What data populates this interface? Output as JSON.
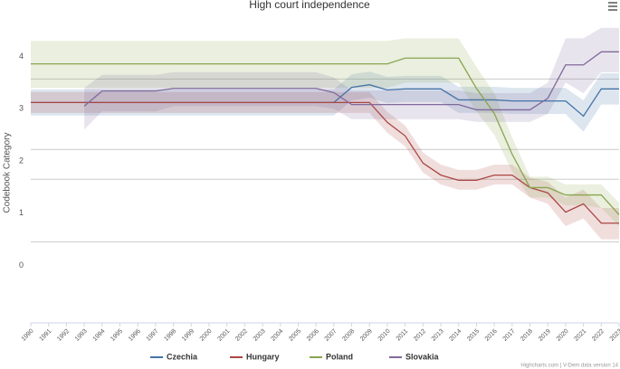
{
  "chart_data": {
    "type": "line",
    "title": "High court independence",
    "y_label": "Codebook Category",
    "credits": "Highcharts.com | V-Dem data version 14",
    "x": [
      1990,
      1991,
      1992,
      1993,
      1994,
      1995,
      1996,
      1997,
      1998,
      1999,
      2000,
      2001,
      2002,
      2003,
      2004,
      2005,
      2006,
      2007,
      2008,
      2009,
      2010,
      2011,
      2012,
      2013,
      2014,
      2015,
      2016,
      2017,
      2018,
      2019,
      2020,
      2021,
      2022,
      2023
    ],
    "xlim": [
      1990,
      2023
    ],
    "xticks": [
      1990,
      1991,
      1992,
      1993,
      1994,
      1995,
      1996,
      1997,
      1998,
      1999,
      2000,
      2001,
      2002,
      2003,
      2004,
      2005,
      2006,
      2007,
      2008,
      2009,
      2010,
      2011,
      2012,
      2013,
      2014,
      2015,
      2016,
      2017,
      2018,
      2019,
      2020,
      2021,
      2022,
      2023
    ],
    "ylim": [
      -1.1,
      4.65
    ],
    "yticks": [
      0,
      1,
      2,
      3,
      4
    ],
    "plot_lines": [
      3.57,
      2.22,
      1.65,
      0.45
    ],
    "legend": "bottom",
    "series": [
      {
        "name": "Czechia",
        "color": "#4572a7",
        "values": [
          3.12,
          3.12,
          3.12,
          3.12,
          3.12,
          3.12,
          3.12,
          3.12,
          3.12,
          3.12,
          3.12,
          3.12,
          3.12,
          3.12,
          3.12,
          3.12,
          3.12,
          3.12,
          3.41,
          3.46,
          3.36,
          3.38,
          3.38,
          3.38,
          3.17,
          3.17,
          3.17,
          3.15,
          3.15,
          3.15,
          3.15,
          2.86,
          3.38,
          3.38
        ],
        "lower": [
          2.87,
          2.87,
          2.87,
          2.87,
          2.87,
          2.87,
          2.87,
          2.87,
          2.87,
          2.87,
          2.87,
          2.87,
          2.87,
          2.87,
          2.87,
          2.87,
          2.87,
          2.87,
          3.16,
          3.21,
          3.11,
          3.13,
          3.13,
          3.13,
          2.92,
          2.92,
          2.92,
          2.9,
          2.9,
          2.9,
          2.9,
          2.56,
          3.08,
          3.08
        ],
        "upper": [
          3.37,
          3.37,
          3.37,
          3.37,
          3.37,
          3.37,
          3.37,
          3.37,
          3.37,
          3.37,
          3.37,
          3.37,
          3.37,
          3.37,
          3.37,
          3.37,
          3.37,
          3.37,
          3.66,
          3.71,
          3.61,
          3.63,
          3.63,
          3.63,
          3.42,
          3.42,
          3.42,
          3.4,
          3.4,
          3.4,
          3.4,
          3.16,
          3.68,
          3.68
        ]
      },
      {
        "name": "Hungary",
        "color": "#aa4643",
        "values": [
          3.12,
          3.12,
          3.12,
          3.12,
          3.12,
          3.12,
          3.12,
          3.12,
          3.12,
          3.12,
          3.12,
          3.12,
          3.12,
          3.12,
          3.12,
          3.12,
          3.12,
          3.12,
          3.12,
          3.12,
          2.74,
          2.48,
          1.96,
          1.73,
          1.63,
          1.63,
          1.73,
          1.73,
          1.49,
          1.39,
          1.02,
          1.18,
          0.81,
          0.81
        ],
        "lower": [
          2.92,
          2.92,
          2.92,
          2.92,
          2.92,
          2.92,
          2.92,
          2.92,
          2.92,
          2.92,
          2.92,
          2.92,
          2.92,
          2.92,
          2.92,
          2.92,
          2.92,
          2.92,
          2.92,
          2.92,
          2.54,
          2.28,
          1.78,
          1.55,
          1.45,
          1.45,
          1.55,
          1.55,
          1.3,
          1.18,
          0.75,
          0.9,
          0.5,
          0.5
        ],
        "upper": [
          3.32,
          3.32,
          3.32,
          3.32,
          3.32,
          3.32,
          3.32,
          3.32,
          3.32,
          3.32,
          3.32,
          3.32,
          3.32,
          3.32,
          3.32,
          3.32,
          3.32,
          3.32,
          3.32,
          3.32,
          2.94,
          2.68,
          2.16,
          1.93,
          1.83,
          1.83,
          1.93,
          1.93,
          1.68,
          1.6,
          1.3,
          1.45,
          1.1,
          1.1
        ]
      },
      {
        "name": "Poland",
        "color": "#89a54e",
        "values": [
          3.86,
          3.86,
          3.86,
          3.86,
          3.86,
          3.86,
          3.86,
          3.86,
          3.86,
          3.86,
          3.86,
          3.86,
          3.86,
          3.86,
          3.86,
          3.86,
          3.86,
          3.86,
          3.86,
          3.86,
          3.86,
          3.97,
          3.97,
          3.97,
          3.97,
          3.39,
          2.91,
          2.13,
          1.49,
          1.49,
          1.35,
          1.35,
          1.35,
          0.97
        ],
        "lower": [
          3.4,
          3.4,
          3.4,
          3.4,
          3.4,
          3.4,
          3.4,
          3.4,
          3.4,
          3.4,
          3.4,
          3.4,
          3.4,
          3.4,
          3.4,
          3.4,
          3.4,
          3.4,
          3.4,
          3.4,
          3.4,
          3.5,
          3.5,
          3.5,
          3.5,
          2.95,
          2.5,
          1.8,
          1.3,
          1.3,
          1.15,
          1.15,
          1.1,
          0.75
        ],
        "upper": [
          4.3,
          4.3,
          4.3,
          4.3,
          4.3,
          4.3,
          4.3,
          4.3,
          4.3,
          4.3,
          4.3,
          4.3,
          4.3,
          4.3,
          4.3,
          4.3,
          4.3,
          4.3,
          4.3,
          4.3,
          4.3,
          4.35,
          4.35,
          4.35,
          4.35,
          3.8,
          3.3,
          2.45,
          1.7,
          1.7,
          1.55,
          1.55,
          1.55,
          1.2
        ]
      },
      {
        "name": "Slovakia",
        "color": "#80699b",
        "values": [
          null,
          null,
          null,
          3.05,
          3.34,
          3.34,
          3.34,
          3.34,
          3.39,
          3.39,
          3.39,
          3.39,
          3.39,
          3.39,
          3.39,
          3.39,
          3.39,
          3.31,
          3.08,
          3.08,
          3.08,
          3.08,
          3.08,
          3.08,
          3.08,
          2.98,
          2.98,
          2.98,
          2.98,
          3.2,
          3.84,
          3.84,
          4.09,
          4.09
        ],
        "lower": [
          null,
          null,
          null,
          2.6,
          2.95,
          2.95,
          2.95,
          2.95,
          3.05,
          3.05,
          3.05,
          3.05,
          3.05,
          3.05,
          3.05,
          3.05,
          3.05,
          3.0,
          2.8,
          2.8,
          2.8,
          2.8,
          2.8,
          2.8,
          2.8,
          2.75,
          2.75,
          2.75,
          2.75,
          2.9,
          3.5,
          3.3,
          3.7,
          3.7
        ],
        "upper": [
          null,
          null,
          null,
          3.4,
          3.65,
          3.65,
          3.65,
          3.65,
          3.7,
          3.7,
          3.7,
          3.7,
          3.7,
          3.7,
          3.7,
          3.7,
          3.7,
          3.6,
          3.35,
          3.35,
          3.35,
          3.35,
          3.35,
          3.35,
          3.35,
          3.3,
          3.3,
          3.3,
          3.3,
          3.5,
          4.35,
          4.35,
          4.55,
          4.55
        ]
      }
    ]
  }
}
